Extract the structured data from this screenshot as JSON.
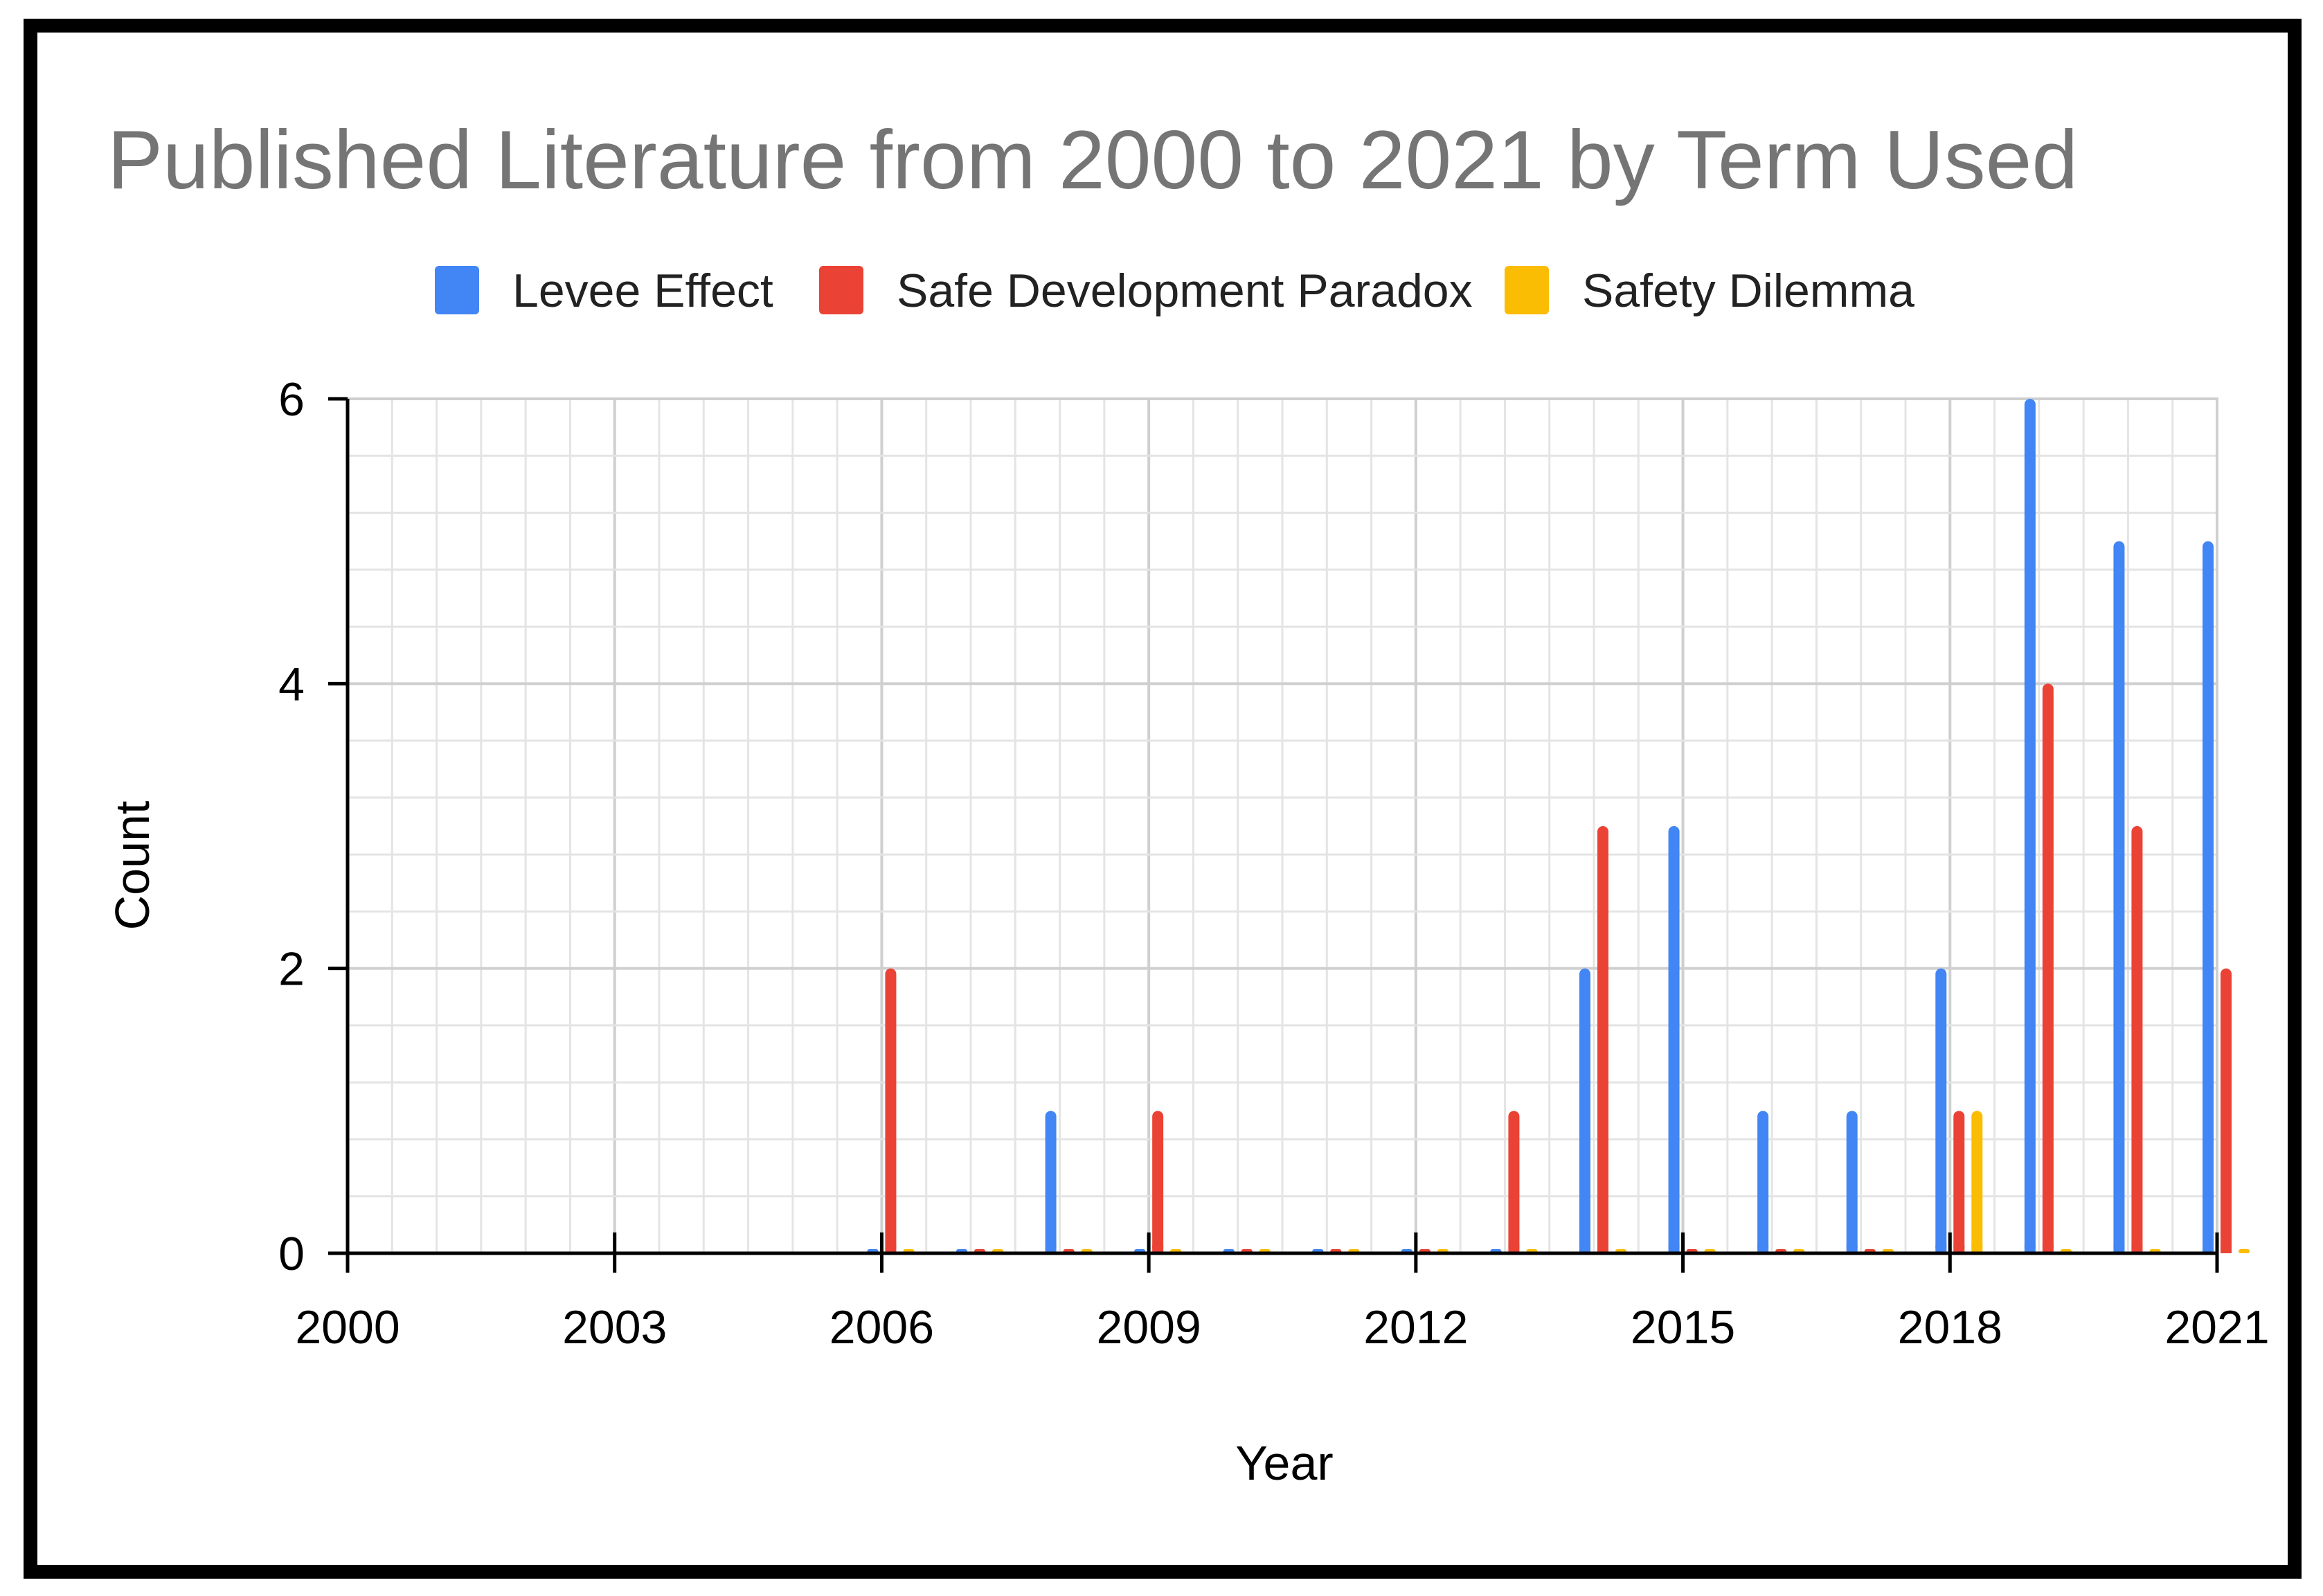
{
  "chart_data": {
    "type": "bar",
    "title": "Published Literature from 2000 to 2021 by Term Used",
    "xlabel": "Year",
    "ylabel": "Count",
    "x": [
      2000,
      2001,
      2002,
      2003,
      2004,
      2005,
      2006,
      2007,
      2008,
      2009,
      2010,
      2011,
      2012,
      2013,
      2014,
      2015,
      2016,
      2017,
      2018,
      2019,
      2020,
      2021
    ],
    "series": [
      {
        "name": "Levee Effect",
        "color": "#4285F4",
        "values": [
          0,
          0,
          0,
          0,
          0,
          0,
          0,
          0,
          1,
          0,
          0,
          0,
          0,
          0,
          2,
          3,
          1,
          1,
          2,
          6,
          5,
          5
        ]
      },
      {
        "name": "Safe Development Paradox",
        "color": "#EA4335",
        "values": [
          0,
          0,
          0,
          0,
          0,
          0,
          2,
          0,
          0,
          1,
          0,
          0,
          0,
          1,
          3,
          0,
          0,
          0,
          1,
          4,
          3,
          2
        ]
      },
      {
        "name": "Safety Dilemma",
        "color": "#FBBC04",
        "values": [
          0,
          0,
          0,
          0,
          0,
          0,
          0,
          0,
          0,
          0,
          0,
          0,
          0,
          0,
          0,
          0,
          0,
          0,
          1,
          0,
          0,
          0
        ]
      }
    ],
    "xticks": [
      "2000",
      "2003",
      "2006",
      "2009",
      "2012",
      "2015",
      "2018",
      "2021"
    ],
    "yticks": [
      "0",
      "2",
      "4",
      "6"
    ],
    "xlim": [
      2000,
      2021
    ],
    "ylim": [
      0,
      6
    ],
    "grid": true,
    "legend_position": "top"
  }
}
